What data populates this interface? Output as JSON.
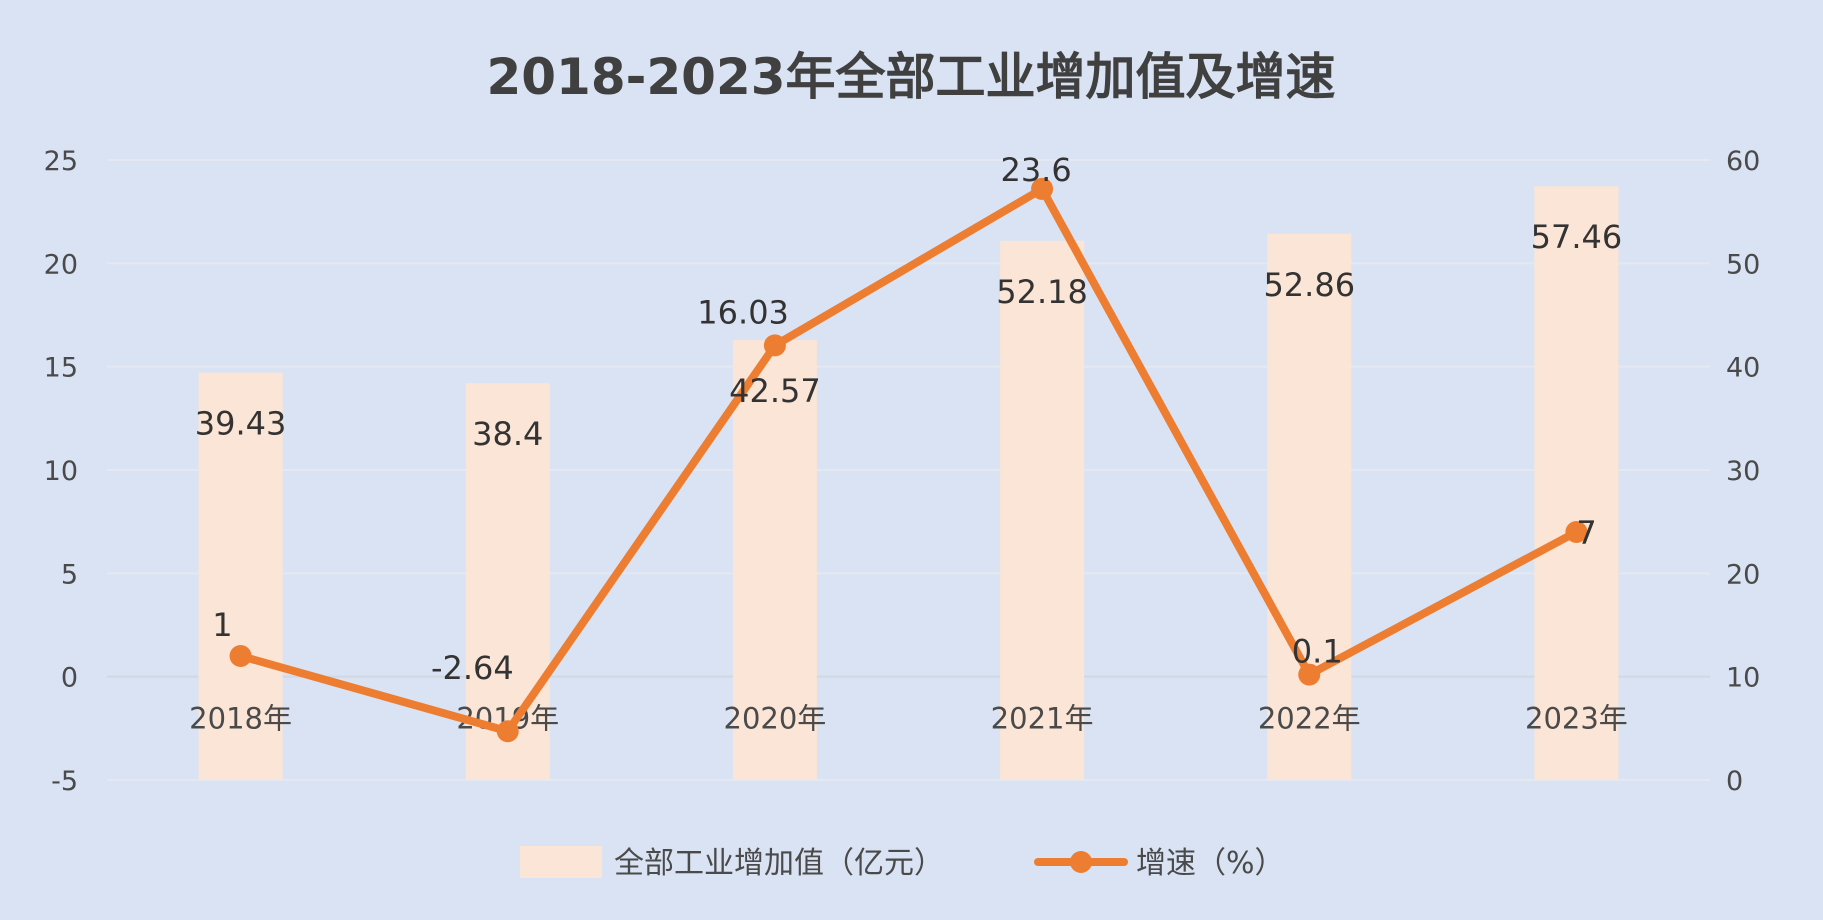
{
  "colors": {
    "background": "#dae3f3",
    "bar": "#fbe5d6",
    "line": "#ed7d31",
    "gridline": "#e3e8f1",
    "axis_text": "#4a4a4a"
  },
  "chart_data": {
    "type": "bar",
    "title": "2018-2023年全部工业增加值及增速",
    "categories": [
      "2018年",
      "2019年",
      "2020年",
      "2021年",
      "2022年",
      "2023年"
    ],
    "series": [
      {
        "name": "全部工业增加值（亿元）",
        "type": "bar",
        "axis": "right",
        "values": [
          39.43,
          38.4,
          42.57,
          52.18,
          52.86,
          57.46
        ],
        "labels": [
          "39.43",
          "38.4",
          "42.57",
          "52.18",
          "52.86",
          "57.46"
        ]
      },
      {
        "name": "增速（%）",
        "type": "line",
        "axis": "left",
        "values": [
          1,
          -2.64,
          16.03,
          23.6,
          0.1,
          7
        ],
        "labels": [
          "1",
          "-2.64",
          "16.03",
          "23.6",
          "0.1",
          "7"
        ]
      }
    ],
    "y_left": {
      "min": -5,
      "max": 25,
      "ticks": [
        -5,
        0,
        5,
        10,
        15,
        20,
        25
      ],
      "tick_labels": [
        "-5",
        "0",
        "5",
        "10",
        "15",
        "20",
        "25"
      ]
    },
    "y_right": {
      "min": 0,
      "max": 60,
      "ticks": [
        0,
        10,
        20,
        30,
        40,
        50,
        60
      ],
      "tick_labels": [
        "0",
        "10",
        "20",
        "30",
        "40",
        "50",
        "60"
      ]
    },
    "grid": true,
    "legend_position": "bottom"
  }
}
